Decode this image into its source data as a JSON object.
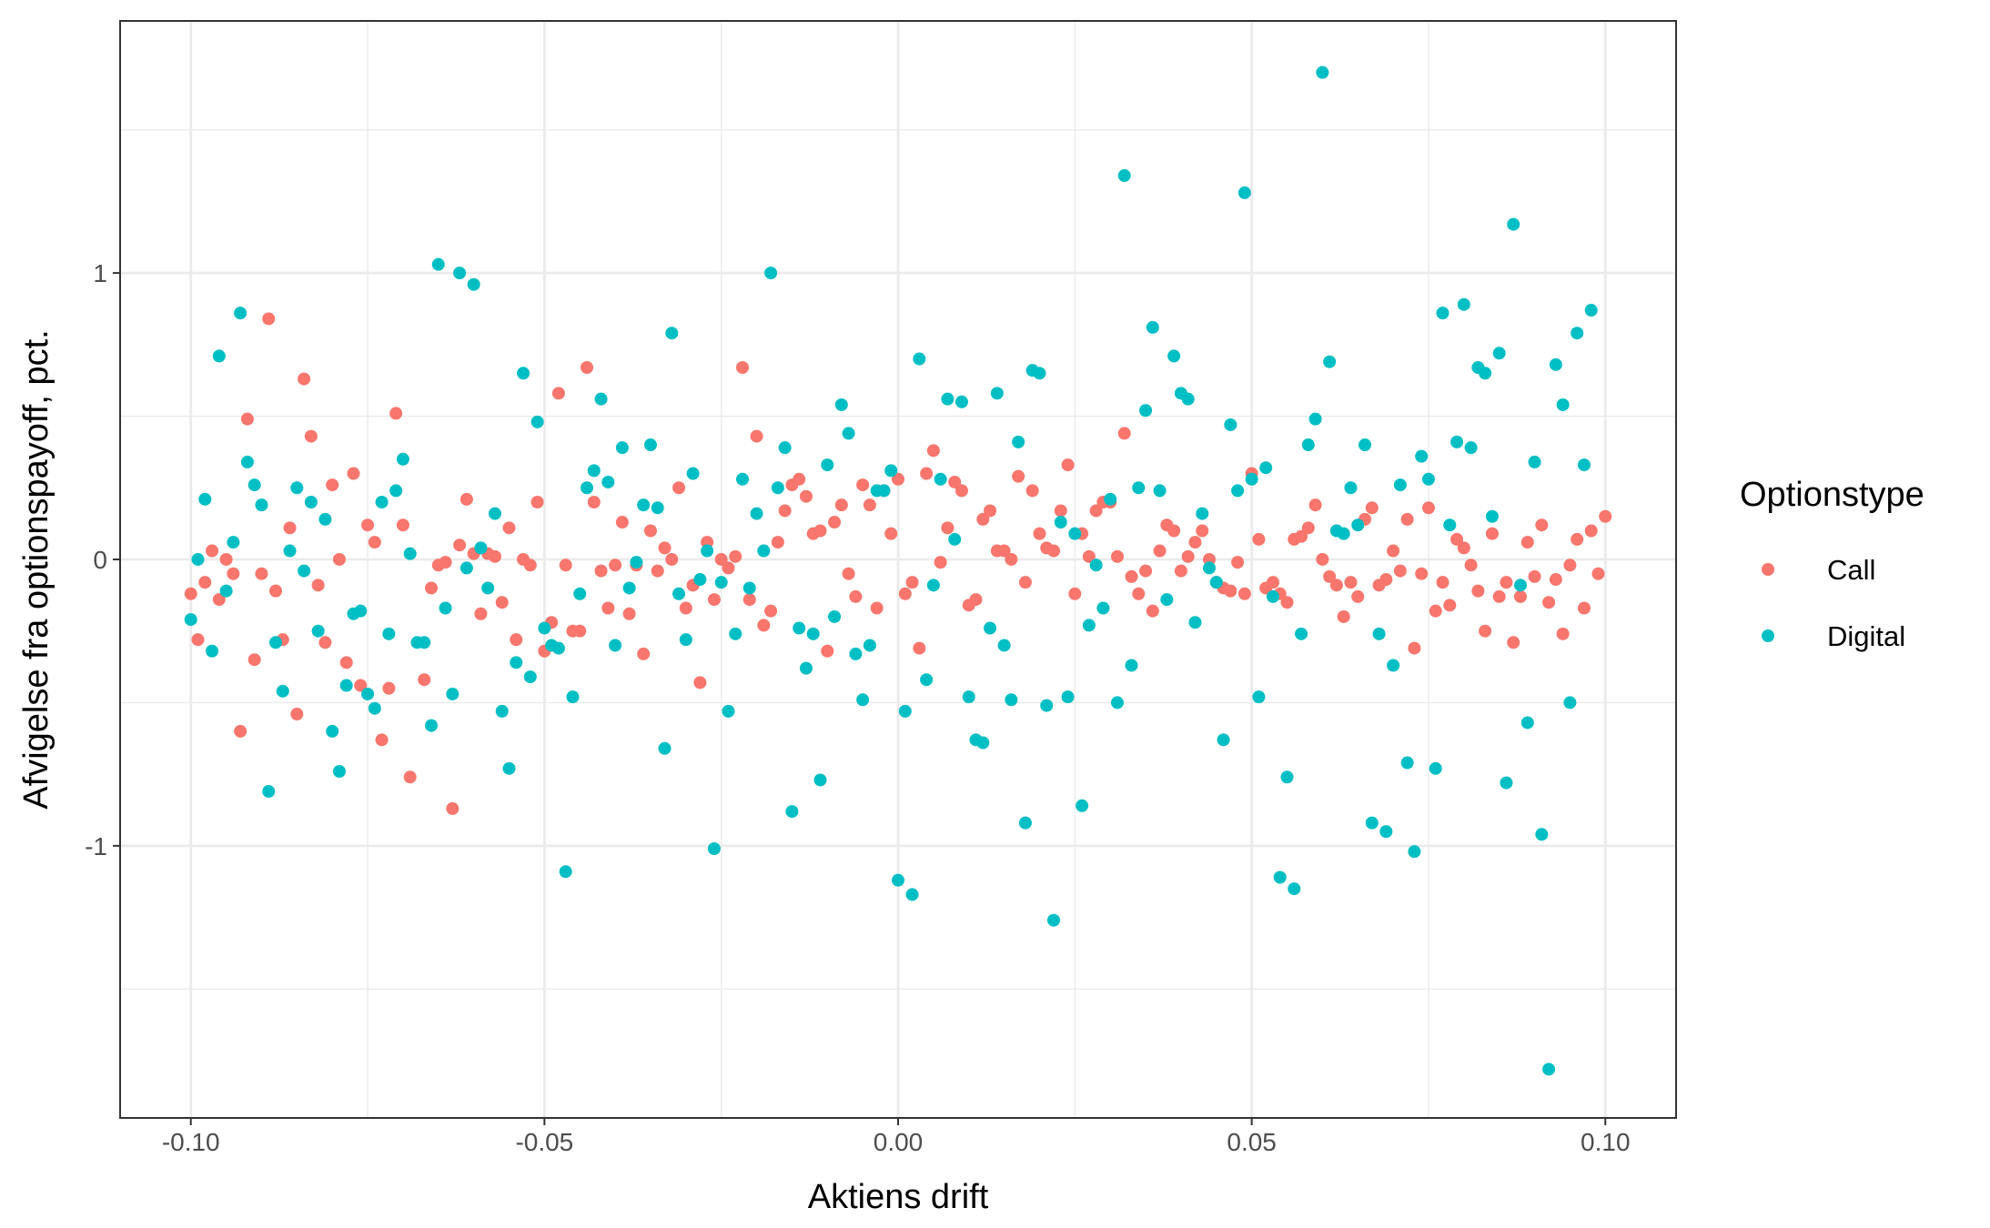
{
  "chart_data": {
    "type": "scatter",
    "x_label": "Aktiens drift",
    "y_label": "Afvigelse fra optionspayoff, pct.",
    "legend_title": "Optionstype",
    "legend_position": "right",
    "grid": true,
    "xlim": [
      -0.11,
      0.11
    ],
    "ylim": [
      -1.95,
      1.88
    ],
    "xticks": [
      {
        "value": -0.1,
        "label": "-0.10"
      },
      {
        "value": -0.05,
        "label": "-0.05"
      },
      {
        "value": 0,
        "label": "0.00"
      },
      {
        "value": 0.05,
        "label": "0.05"
      },
      {
        "value": 0.1,
        "label": "0.10"
      }
    ],
    "yticks": [
      -1,
      0,
      1
    ],
    "minor_xticks": [
      -0.075,
      -0.025,
      0.025,
      0.075
    ],
    "minor_yticks": [
      -1.5,
      -0.5,
      0.5,
      1.5
    ],
    "series": [
      {
        "name": "Call",
        "color": "#f8766d",
        "x": [
          -0.1,
          -0.099,
          -0.098,
          -0.097,
          -0.096,
          -0.095,
          -0.094,
          -0.093,
          -0.092,
          -0.091,
          -0.09,
          -0.089,
          -0.088,
          -0.087,
          -0.086,
          -0.085,
          -0.084,
          -0.083,
          -0.082,
          -0.081,
          -0.08,
          -0.079,
          -0.078,
          -0.077,
          -0.076,
          -0.075,
          -0.074,
          -0.073,
          -0.072,
          -0.071,
          -0.07,
          -0.069,
          -0.067,
          -0.066,
          -0.065,
          -0.064,
          -0.063,
          -0.062,
          -0.061,
          -0.06,
          -0.059,
          -0.058,
          -0.057,
          -0.056,
          -0.055,
          -0.054,
          -0.053,
          -0.052,
          -0.051,
          -0.05,
          -0.049,
          -0.048,
          -0.047,
          -0.046,
          -0.045,
          -0.044,
          -0.043,
          -0.042,
          -0.041,
          -0.04,
          -0.039,
          -0.038,
          -0.037,
          -0.036,
          -0.035,
          -0.034,
          -0.033,
          -0.032,
          -0.031,
          -0.03,
          -0.029,
          -0.028,
          -0.027,
          -0.026,
          -0.025,
          -0.024,
          -0.023,
          -0.022,
          -0.021,
          -0.02,
          -0.019,
          -0.018,
          -0.017,
          -0.016,
          -0.015,
          -0.014,
          -0.013,
          -0.012,
          -0.011,
          -0.01,
          -0.009,
          -0.008,
          -0.007,
          -0.006,
          -0.005,
          -0.004,
          -0.003,
          -0.002,
          -0.001,
          0,
          0.001,
          0.002,
          0.003,
          0.004,
          0.005,
          0.006,
          0.007,
          0.008,
          0.009,
          0.01,
          0.011,
          0.012,
          0.013,
          0.014,
          0.015,
          0.016,
          0.017,
          0.018,
          0.019,
          0.02,
          0.021,
          0.022,
          0.023,
          0.024,
          0.025,
          0.026,
          0.027,
          0.028,
          0.029,
          0.03,
          0.031,
          0.032,
          0.033,
          0.034,
          0.035,
          0.036,
          0.037,
          0.038,
          0.039,
          0.04,
          0.041,
          0.042,
          0.043,
          0.044,
          0.045,
          0.046,
          0.047,
          0.048,
          0.049,
          0.05,
          0.051,
          0.052,
          0.053,
          0.054,
          0.055,
          0.056,
          0.057,
          0.058,
          0.059,
          0.06,
          0.061,
          0.062,
          0.063,
          0.064,
          0.065,
          0.066,
          0.067,
          0.068,
          0.069,
          0.07,
          0.071,
          0.072,
          0.073,
          0.074,
          0.075,
          0.076,
          0.077,
          0.078,
          0.079,
          0.08,
          0.081,
          0.082,
          0.083,
          0.084,
          0.085,
          0.086,
          0.087,
          0.088,
          0.089,
          0.09,
          0.091,
          0.092,
          0.093,
          0.094,
          0.095,
          0.096,
          0.097,
          0.098,
          0.099,
          0.1
        ],
        "values": [
          -0.12,
          -0.28,
          -0.08,
          0.03,
          -0.14,
          0,
          -0.05,
          -0.6,
          0.49,
          -0.35,
          -0.05,
          0.84,
          -0.11,
          -0.28,
          0.11,
          -0.54,
          0.63,
          0.43,
          -0.09,
          -0.29,
          0.26,
          0,
          -0.36,
          0.3,
          -0.44,
          0.12,
          0.06,
          -0.63,
          -0.45,
          0.51,
          0.12,
          -0.76,
          -0.42,
          -0.1,
          -0.02,
          -0.01,
          -0.87,
          0.05,
          0.21,
          0.02,
          -0.19,
          0.02,
          0.01,
          -0.15,
          0.11,
          -0.28,
          0,
          -0.02,
          0.2,
          -0.32,
          -0.22,
          0.58,
          -0.02,
          -0.25,
          -0.25,
          0.67,
          0.2,
          -0.04,
          -0.17,
          -0.02,
          0.13,
          -0.19,
          -0.02,
          -0.33,
          0.1,
          -0.04,
          0.04,
          0,
          0.25,
          -0.17,
          -0.09,
          -0.43,
          0.06,
          -0.14,
          0,
          -0.03,
          0.01,
          0.67,
          -0.14,
          0.43,
          -0.23,
          -0.18,
          0.06,
          0.17,
          0.26,
          0.28,
          0.22,
          0.09,
          0.1,
          -0.32,
          0.13,
          0.19,
          -0.05,
          -0.13,
          0.26,
          0.19,
          -0.17,
          0.24,
          0.09,
          0.28,
          -0.12,
          -0.08,
          -0.31,
          0.3,
          0.38,
          -0.01,
          0.11,
          0.27,
          0.24,
          -0.16,
          -0.14,
          0.14,
          0.17,
          0.03,
          0.03,
          0,
          0.29,
          -0.08,
          0.24,
          0.09,
          0.04,
          0.03,
          0.17,
          0.33,
          -0.12,
          0.09,
          0.01,
          0.17,
          0.2,
          0.2,
          0.01,
          0.44,
          -0.06,
          -0.12,
          -0.04,
          -0.18,
          0.03,
          0.12,
          0.1,
          -0.04,
          0.01,
          0.06,
          0.1,
          0,
          -0.08,
          -0.1,
          -0.11,
          -0.01,
          -0.12,
          0.3,
          0.07,
          -0.1,
          -0.08,
          -0.12,
          -0.15,
          0.07,
          0.08,
          0.11,
          0.19,
          0,
          -0.06,
          -0.09,
          -0.2,
          -0.08,
          -0.13,
          0.14,
          0.18,
          -0.09,
          -0.07,
          0.03,
          -0.04,
          0.14,
          -0.31,
          -0.05,
          0.18,
          -0.18,
          -0.08,
          -0.16,
          0.07,
          0.04,
          -0.02,
          -0.11,
          -0.25,
          0.09,
          -0.13,
          -0.08,
          -0.29,
          -0.13,
          0.06,
          -0.06,
          0.12,
          -0.15,
          -0.07,
          -0.26,
          -0.02,
          0.07,
          -0.17,
          0.1,
          -0.05,
          0.15
        ]
      },
      {
        "name": "Digital",
        "color": "#00bfc4",
        "x": [
          -0.1,
          -0.099,
          -0.098,
          -0.097,
          -0.096,
          -0.095,
          -0.094,
          -0.093,
          -0.092,
          -0.091,
          -0.09,
          -0.089,
          -0.088,
          -0.087,
          -0.086,
          -0.085,
          -0.084,
          -0.083,
          -0.082,
          -0.081,
          -0.08,
          -0.079,
          -0.078,
          -0.077,
          -0.076,
          -0.075,
          -0.074,
          -0.073,
          -0.072,
          -0.071,
          -0.07,
          -0.069,
          -0.068,
          -0.067,
          -0.066,
          -0.065,
          -0.064,
          -0.063,
          -0.062,
          -0.061,
          -0.06,
          -0.059,
          -0.058,
          -0.057,
          -0.056,
          -0.055,
          -0.054,
          -0.053,
          -0.052,
          -0.051,
          -0.05,
          -0.049,
          -0.048,
          -0.047,
          -0.046,
          -0.045,
          -0.044,
          -0.043,
          -0.042,
          -0.041,
          -0.04,
          -0.039,
          -0.038,
          -0.037,
          -0.036,
          -0.035,
          -0.034,
          -0.033,
          -0.032,
          -0.031,
          -0.03,
          -0.029,
          -0.028,
          -0.027,
          -0.026,
          -0.025,
          -0.024,
          -0.023,
          -0.022,
          -0.021,
          -0.02,
          -0.019,
          -0.018,
          -0.017,
          -0.016,
          -0.015,
          -0.014,
          -0.013,
          -0.012,
          -0.011,
          -0.01,
          -0.009,
          -0.008,
          -0.007,
          -0.006,
          -0.005,
          -0.004,
          -0.003,
          -0.002,
          -0.001,
          0,
          0.001,
          0.002,
          0.003,
          0.004,
          0.005,
          0.006,
          0.007,
          0.008,
          0.009,
          0.01,
          0.011,
          0.012,
          0.013,
          0.014,
          0.015,
          0.016,
          0.017,
          0.018,
          0.019,
          0.02,
          0.021,
          0.022,
          0.023,
          0.024,
          0.025,
          0.026,
          0.027,
          0.028,
          0.029,
          0.03,
          0.031,
          0.032,
          0.033,
          0.034,
          0.035,
          0.036,
          0.037,
          0.038,
          0.039,
          0.04,
          0.041,
          0.042,
          0.043,
          0.044,
          0.045,
          0.046,
          0.047,
          0.048,
          0.049,
          0.05,
          0.051,
          0.052,
          0.053,
          0.054,
          0.055,
          0.056,
          0.057,
          0.058,
          0.059,
          0.06,
          0.061,
          0.062,
          0.063,
          0.064,
          0.065,
          0.066,
          0.067,
          0.068,
          0.069,
          0.07,
          0.071,
          0.072,
          0.073,
          0.074,
          0.075,
          0.076,
          0.077,
          0.078,
          0.079,
          0.08,
          0.081,
          0.082,
          0.083,
          0.084,
          0.085,
          0.086,
          0.087,
          0.088,
          0.089,
          0.09,
          0.091,
          0.092,
          0.093,
          0.094,
          0.095,
          0.096,
          0.097,
          0.098
        ],
        "values": [
          -0.21,
          0,
          0.21,
          -0.32,
          0.71,
          -0.11,
          0.06,
          0.86,
          0.34,
          0.26,
          0.19,
          -0.81,
          -0.29,
          -0.46,
          0.03,
          0.25,
          -0.04,
          0.2,
          -0.25,
          0.14,
          -0.6,
          -0.74,
          -0.44,
          -0.19,
          -0.18,
          -0.47,
          -0.52,
          0.2,
          -0.26,
          0.24,
          0.35,
          0.02,
          -0.29,
          -0.29,
          -0.58,
          1.03,
          -0.17,
          -0.47,
          1,
          -0.03,
          0.96,
          0.04,
          -0.1,
          0.16,
          -0.53,
          -0.73,
          -0.36,
          0.65,
          -0.41,
          0.48,
          -0.24,
          -0.3,
          -0.31,
          -1.09,
          -0.48,
          -0.12,
          0.25,
          0.31,
          0.56,
          0.27,
          -0.3,
          0.39,
          -0.1,
          -0.01,
          0.19,
          0.4,
          0.18,
          -0.66,
          0.79,
          -0.12,
          -0.28,
          0.3,
          -0.07,
          0.03,
          -1.01,
          -0.08,
          -0.53,
          -0.26,
          0.28,
          -0.1,
          0.16,
          0.03,
          1,
          0.25,
          0.39,
          -0.88,
          -0.24,
          -0.38,
          -0.26,
          -0.77,
          0.33,
          -0.2,
          0.54,
          0.44,
          -0.33,
          -0.49,
          -0.3,
          0.24,
          0.24,
          0.31,
          -1.12,
          -0.53,
          -1.17,
          0.7,
          -0.42,
          -0.09,
          0.28,
          0.56,
          0.07,
          0.55,
          -0.48,
          -0.63,
          -0.64,
          -0.24,
          0.58,
          -0.3,
          -0.49,
          0.41,
          -0.92,
          0.66,
          0.65,
          -0.51,
          -1.26,
          0.13,
          -0.48,
          0.09,
          -0.86,
          -0.23,
          -0.02,
          -0.17,
          0.21,
          -0.5,
          1.34,
          -0.37,
          0.25,
          0.52,
          0.81,
          0.24,
          -0.14,
          0.71,
          0.58,
          0.56,
          -0.22,
          0.16,
          -0.03,
          -0.08,
          -0.63,
          0.47,
          0.24,
          1.28,
          0.28,
          -0.48,
          0.32,
          -0.13,
          -1.11,
          -0.76,
          -1.15,
          -0.26,
          0.4,
          0.49,
          1.7,
          0.69,
          0.1,
          0.09,
          0.25,
          0.12,
          0.4,
          -0.92,
          -0.26,
          -0.95,
          -0.37,
          0.26,
          -0.71,
          -1.02,
          0.36,
          0.28,
          -0.73,
          0.86,
          0.12,
          0.41,
          0.89,
          0.39,
          0.67,
          0.65,
          0.15,
          0.72,
          -0.78,
          1.17,
          -0.09,
          -0.57,
          0.34,
          -0.96,
          -1.78,
          0.68,
          0.54,
          -0.5,
          0.79,
          0.33,
          0.87
        ]
      }
    ]
  }
}
